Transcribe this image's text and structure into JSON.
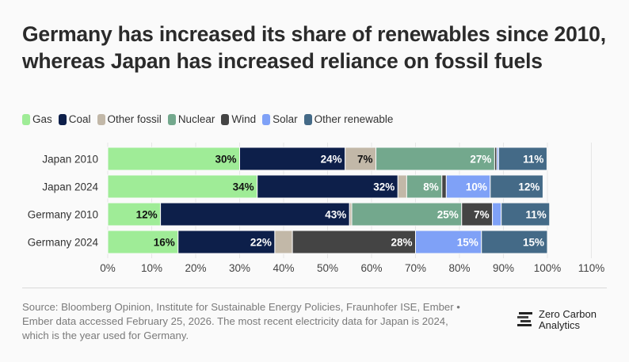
{
  "title": "Germany has increased its share of renewables since 2010, whereas Japan has increased reliance on fossil fuels",
  "source": "Source: Bloomberg Opinion, Institute for Sustainable Energy Policies, Fraunhofer ISE, Ember • Ember data accessed February 25, 2026. The most recent electricity data for Japan is 2024, which is the year used for Germany.",
  "logo": {
    "line1": "Zero Carbon",
    "line2": "Analytics"
  },
  "chart_data": {
    "type": "bar",
    "orientation": "horizontal",
    "stacked": true,
    "categories": [
      "Japan 2010",
      "Japan 2024",
      "Germany 2010",
      "Germany 2024"
    ],
    "series": [
      {
        "name": "Gas",
        "color": "#9fec97",
        "label_color": "#111111",
        "values": [
          30,
          34,
          12,
          16
        ]
      },
      {
        "name": "Coal",
        "color": "#0d1f4a",
        "label_color": "#ffffff",
        "values": [
          24,
          32,
          43,
          22
        ]
      },
      {
        "name": "Other fossil",
        "color": "#c2b8a8",
        "label_color": "#111111",
        "values": [
          7,
          2,
          0.5,
          4
        ]
      },
      {
        "name": "Nuclear",
        "color": "#73a88d",
        "label_color": "#ffffff",
        "values": [
          27,
          8,
          25,
          0
        ]
      },
      {
        "name": "Wind",
        "color": "#444444",
        "label_color": "#ffffff",
        "values": [
          0.5,
          1,
          7,
          28
        ]
      },
      {
        "name": "Solar",
        "color": "#7fa1f7",
        "label_color": "#ffffff",
        "values": [
          0.4,
          10,
          2,
          15
        ]
      },
      {
        "name": "Other renewable",
        "color": "#446a87",
        "label_color": "#ffffff",
        "values": [
          11,
          12,
          11,
          15
        ]
      }
    ],
    "data_labels": [
      [
        "30%",
        "24%",
        "7%",
        "27%",
        "",
        "",
        "11%"
      ],
      [
        "34%",
        "32%",
        "",
        "8%",
        "",
        "10%",
        "12%"
      ],
      [
        "12%",
        "43%",
        "",
        "25%",
        "7%",
        "",
        "11%"
      ],
      [
        "16%",
        "22%",
        "",
        "",
        "28%",
        "15%",
        "15%"
      ]
    ],
    "xlim": [
      0,
      110
    ],
    "xticks": [
      "0%",
      "10%",
      "20%",
      "30%",
      "40%",
      "50%",
      "60%",
      "70%",
      "80%",
      "90%",
      "100%",
      "110%"
    ],
    "grid": true,
    "legend_position": "top-left"
  }
}
